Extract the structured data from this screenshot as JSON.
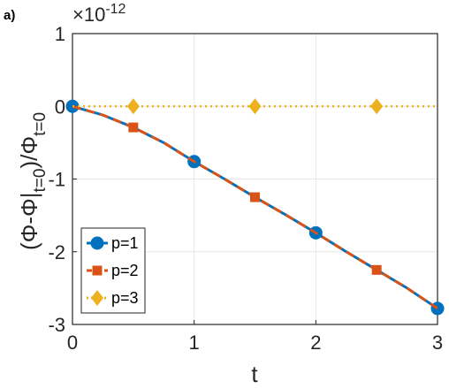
{
  "panel_label": "a)",
  "chart_data": {
    "type": "line",
    "xlabel": "t",
    "ylabel_parts": [
      "(Φ-Φ|",
      "t=0",
      ")/Φ",
      "t=0"
    ],
    "exponent_label": "×10",
    "exponent_power": "-12",
    "xlim": [
      0,
      3
    ],
    "ylim": [
      -3,
      1
    ],
    "x_ticks": [
      0,
      1,
      2,
      3
    ],
    "x_tick_labels": [
      "0",
      "1",
      "2",
      "3"
    ],
    "y_ticks": [
      1,
      0,
      -1,
      -2,
      -3
    ],
    "y_tick_labels": [
      "1",
      "0",
      "-1",
      "-2",
      "-3"
    ],
    "grid": true,
    "legend_position": "bottom-left",
    "series": [
      {
        "name": "p=1",
        "color": "#0072BD",
        "marker": "circle",
        "line": "solid",
        "x": [
          0,
          0.25,
          0.5,
          0.75,
          1.0,
          1.25,
          1.5,
          1.75,
          2.0,
          2.25,
          2.5,
          2.75,
          3.0
        ],
        "y": [
          0,
          -0.12,
          -0.29,
          -0.5,
          -0.76,
          -1.0,
          -1.25,
          -1.49,
          -1.74,
          -2.0,
          -2.25,
          -2.5,
          -2.78
        ],
        "marker_x": [
          0,
          1,
          2,
          3
        ]
      },
      {
        "name": "p=2",
        "color": "#D95319",
        "marker": "square",
        "line": "dashed",
        "x": [
          0,
          0.25,
          0.5,
          0.75,
          1.0,
          1.25,
          1.5,
          1.75,
          2.0,
          2.25,
          2.5,
          2.75,
          3.0
        ],
        "y": [
          0,
          -0.12,
          -0.29,
          -0.5,
          -0.76,
          -1.0,
          -1.25,
          -1.49,
          -1.74,
          -2.0,
          -2.25,
          -2.5,
          -2.78
        ],
        "marker_x": [
          0.5,
          1.5,
          2.5
        ]
      },
      {
        "name": "p=3",
        "color": "#EDB120",
        "marker": "diamond",
        "line": "dotted",
        "x": [
          0,
          0.5,
          1.0,
          1.5,
          2.0,
          2.5,
          3.0
        ],
        "y": [
          0,
          0,
          0,
          0,
          0,
          0,
          0
        ],
        "marker_x": [
          0.5,
          1.5,
          2.5
        ]
      }
    ]
  }
}
